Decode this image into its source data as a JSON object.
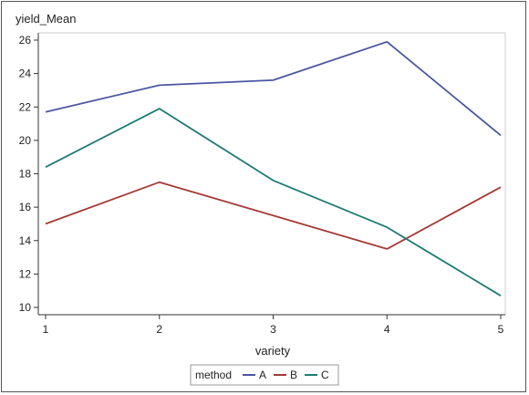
{
  "chart_data": {
    "type": "line",
    "ylabel": "yield_Mean",
    "xlabel": "variety",
    "x": [
      1,
      2,
      3,
      4,
      5
    ],
    "xticks": [
      "1",
      "2",
      "3",
      "4",
      "5"
    ],
    "yticks": [
      "10",
      "12",
      "14",
      "16",
      "18",
      "20",
      "22",
      "24",
      "26"
    ],
    "ylim": [
      10,
      26
    ],
    "xlim": [
      1,
      5
    ],
    "grid": false,
    "legend": {
      "title": "method",
      "placement": "bottom-center"
    },
    "series": [
      {
        "name": "A",
        "color": "#4a57a0",
        "values": [
          21.7,
          23.3,
          23.6,
          25.9,
          20.3
        ]
      },
      {
        "name": "B",
        "color": "#a43a36",
        "values": [
          15.0,
          17.5,
          15.5,
          13.5,
          17.2
        ]
      },
      {
        "name": "C",
        "color": "#1e7a72",
        "values": [
          18.4,
          21.9,
          17.6,
          14.8,
          10.7
        ]
      }
    ]
  }
}
